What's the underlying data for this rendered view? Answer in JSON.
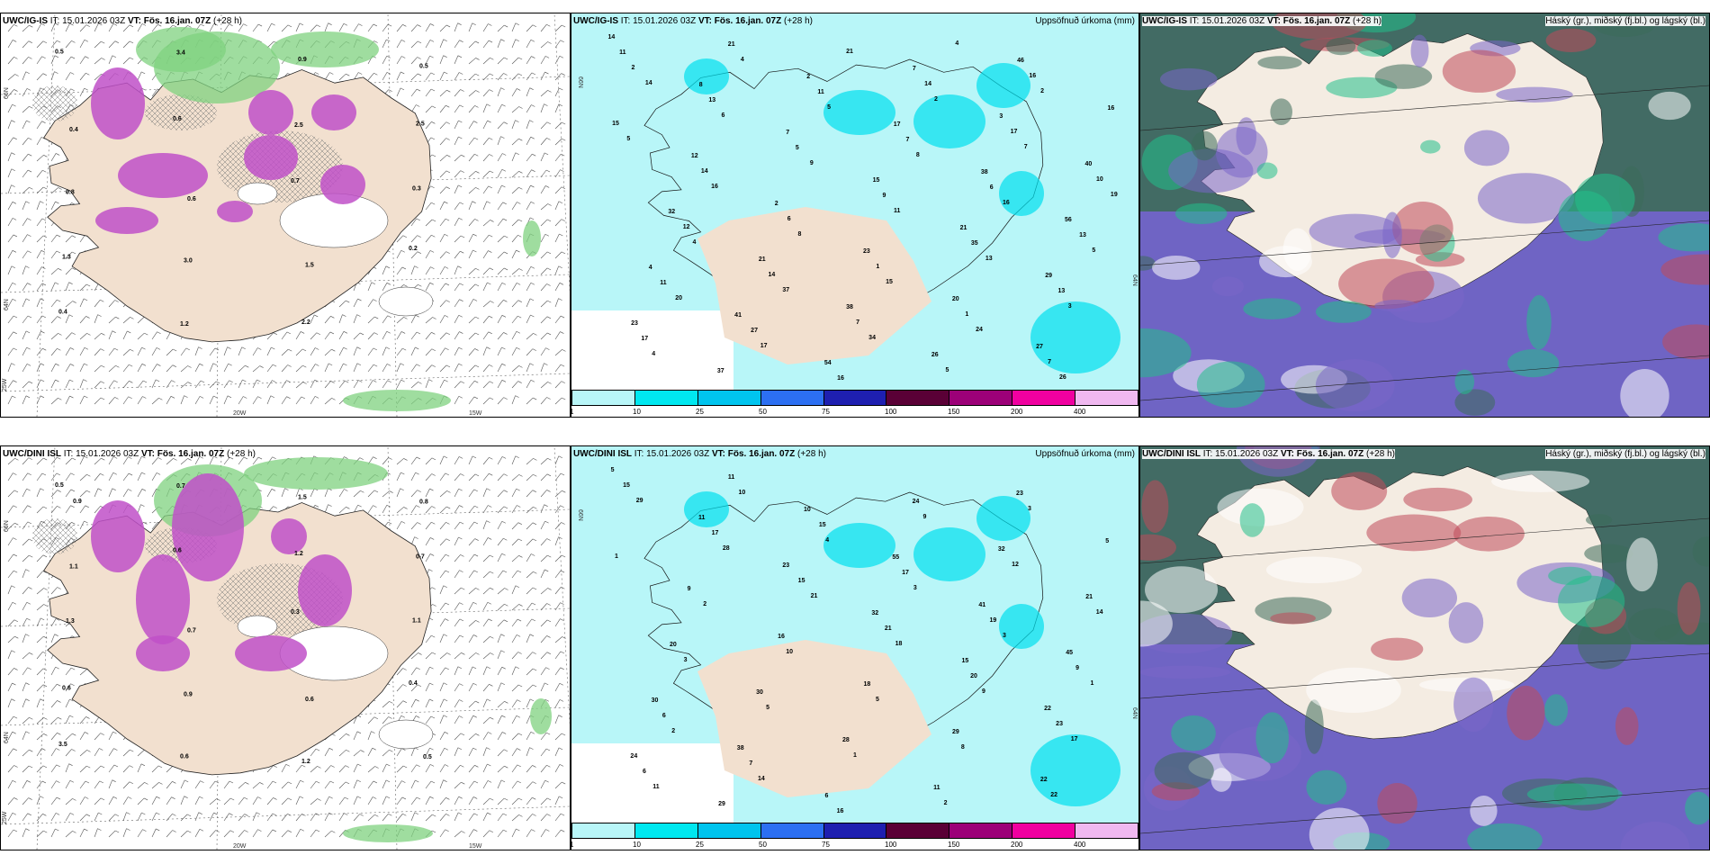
{
  "rows": [
    {
      "wind": {
        "model": "UWC/IG-IS",
        "it_label": "IT:",
        "it": "15.01.2026 03Z",
        "vt_label": "VT:",
        "vt": "Fös. 16.jan. 07Z",
        "step": "(+28 h)",
        "lat_top": "66N",
        "lat_mid": "64N",
        "lon_left": "25W",
        "lon_mid": "20W",
        "lon_right": "15W",
        "values": [
          "0.5",
          "0.6",
          "0.7",
          "0.2",
          "0.4",
          "3.4",
          "2.5",
          "0.3",
          "1.3",
          "1.2",
          "0.9",
          "2.5",
          "0.8",
          "3.0",
          "2.2",
          "0.5",
          "0.4",
          "0.6",
          "1.5"
        ]
      },
      "precip": {
        "model": "UWC/IG-IS",
        "it_label": "IT:",
        "it": "15.01.2026 03Z",
        "vt_label": "VT:",
        "vt": "Fös. 16.jan. 07Z",
        "step": "(+28 h)",
        "title": "Uppsöfnuð úrkoma (mm)",
        "lat_top": "66N",
        "lat_mid": "64N",
        "values": [
          "14",
          "8",
          "7",
          "15",
          "21",
          "29",
          "23",
          "37",
          "2",
          "17",
          "38",
          "56",
          "4",
          "41",
          "54",
          "7",
          "3",
          "40",
          "32",
          "21",
          "38",
          "26",
          "46",
          "16",
          "12",
          "2",
          "23",
          "20",
          "27",
          "11",
          "13",
          "5",
          "9",
          "35",
          "13",
          "17",
          "21",
          "11",
          "7",
          "6",
          "13",
          "11",
          "27",
          "16",
          "14",
          "17",
          "10",
          "12",
          "14",
          "7",
          "5",
          "16",
          "15",
          "14",
          "6",
          "1",
          "1",
          "7",
          "2",
          "6",
          "9",
          "11",
          "13",
          "3",
          "4",
          "4",
          "5",
          "8",
          "16",
          "5",
          "20",
          "17",
          "21",
          "2",
          "7",
          "19",
          "4",
          "37",
          "34",
          "4",
          "2",
          "5",
          "16",
          "8",
          "15",
          "24",
          "26",
          "14"
        ]
      },
      "cloud": {
        "model": "UWC/IG-IS",
        "it_label": "IT:",
        "it": "15.01.2026 03Z",
        "vt_label": "VT:",
        "vt": "Fös. 16.jan. 07Z",
        "step": "(+28 h)",
        "title": "Háský (gr.), miðský (fj.bl.) og lágský (bl.)"
      }
    },
    {
      "wind": {
        "model": "UWC/DINI ISL",
        "it_label": "IT:",
        "it": "15.01.2026 03Z",
        "vt_label": "VT:",
        "vt": "Fös. 16.jan. 07Z",
        "step": "(+28 h)",
        "lat_top": "66N",
        "lat_mid": "64N",
        "lon_left": "25W",
        "lon_mid": "20W",
        "lon_right": "15W",
        "values": [
          "0.5",
          "0.6",
          "0.3",
          "0.4",
          "3.5",
          "0.7",
          "1.2",
          "1.1",
          "0.6",
          "0.6",
          "1.5",
          "0.7",
          "1.3",
          "0.9",
          "1.2",
          "0.8",
          "1.1",
          "0.7",
          "0.6",
          "0.5",
          "0.9"
        ]
      },
      "precip": {
        "model": "UWC/DINI ISL",
        "it_label": "IT:",
        "it": "15.01.2026 03Z",
        "vt_label": "VT:",
        "vt": "Fös. 16.jan. 07Z",
        "step": "(+28 h)",
        "title": "Uppsöfnuð úrkoma (mm)",
        "lat_top": "66N",
        "lat_mid": "64N",
        "values": [
          "5",
          "11",
          "23",
          "32",
          "15",
          "22",
          "24",
          "29",
          "10",
          "55",
          "41",
          "45",
          "30",
          "38",
          "6",
          "24",
          "32",
          "21",
          "20",
          "30",
          "28",
          "11",
          "23",
          "5",
          "9",
          "16",
          "18",
          "29",
          "22",
          "15",
          "17",
          "15",
          "21",
          "20",
          "23",
          "6",
          "11",
          "15",
          "17",
          "19",
          "9",
          "6",
          "7",
          "16",
          "9",
          "12",
          "14",
          "3",
          "5",
          "1",
          "2",
          "3",
          "1",
          "2",
          "10",
          "5",
          "8",
          "22",
          "29",
          "28",
          "21",
          "18",
          "9",
          "17",
          "11",
          "10",
          "4",
          "3",
          "3",
          "1",
          "2",
          "14"
        ]
      },
      "cloud": {
        "model": "UWC/DINI ISL",
        "it_label": "IT:",
        "it": "15.01.2026 03Z",
        "vt_label": "VT:",
        "vt": "Fös. 16.jan. 07Z",
        "step": "(+28 h)",
        "title": "Háský (gr.), miðský (fj.bl.) og lágský (bl.)"
      }
    }
  ],
  "colorbar": {
    "ticks": [
      "1",
      "10",
      "25",
      "50",
      "75",
      "100",
      "150",
      "200",
      "400"
    ],
    "colors": [
      "#b8f6f8",
      "#00e8f0",
      "#00c4ee",
      "#2c6ff2",
      "#1e1fb0",
      "#5a0036",
      "#9c0078",
      "#f000a0",
      "#f0b8f0"
    ]
  },
  "palette": {
    "land": "#f2e0cf",
    "sea_precip": "#b8f6f8",
    "snow_magenta": "#c040c8",
    "rain_green": "#66c966",
    "cloud_high": "#3d6b5a",
    "cloud_mid": "#7a66c8",
    "cloud_low": "#bf4b5a"
  }
}
